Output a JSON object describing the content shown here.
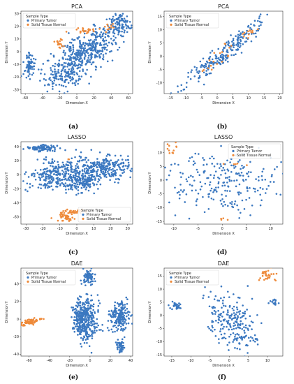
{
  "colors": {
    "primary": "#3b78c0",
    "normal": "#ee8a3a",
    "axis": "#333333"
  },
  "chart_data": [
    {
      "type": "scatter",
      "title": "PCA",
      "xlabel": "Dimension X",
      "ylabel": "Dimension Y",
      "xlim": [
        -65,
        65
      ],
      "ylim": [
        -33,
        32
      ],
      "xticks": [
        -60,
        -40,
        -20,
        0,
        20,
        40,
        60
      ],
      "yticks": [
        -30,
        -20,
        -10,
        0,
        10,
        20,
        30
      ],
      "legend": {
        "title": "Sample Type",
        "entries": [
          "Primary Tumor",
          "Solid Tissue Normal"
        ],
        "placement": "top-left"
      },
      "caption": "(a)",
      "series": [
        {
          "name": "Primary Tumor",
          "n": 700,
          "clusters": [
            {
              "cx": 10,
              "cy": 0,
              "sx": 22,
              "sy": 7,
              "w": 6,
              "angle": 0.4
            },
            {
              "cx": -55,
              "cy": -10,
              "sx": 3,
              "sy": 5,
              "w": 1
            },
            {
              "cx": 50,
              "cy": 22,
              "sx": 7,
              "sy": 4,
              "w": 1.2
            },
            {
              "cx": -15,
              "cy": -20,
              "sx": 12,
              "sy": 5,
              "w": 1.2
            }
          ]
        },
        {
          "name": "Solid Tissue Normal",
          "n": 55,
          "clusters": [
            {
              "cx": -20,
              "cy": 7,
              "sx": 3,
              "sy": 2,
              "w": 1
            },
            {
              "cx": 12,
              "cy": 17,
              "sx": 7,
              "sy": 1.5,
              "w": 1.5
            },
            {
              "cx": 38,
              "cy": 20,
              "sx": 3,
              "sy": 1.5,
              "w": 0.5
            }
          ]
        }
      ]
    },
    {
      "type": "scatter",
      "title": "PCA",
      "xlabel": "Dimension X",
      "ylabel": "Dimension Y",
      "xlim": [
        -17,
        21
      ],
      "ylim": [
        -14,
        17
      ],
      "xticks": [
        -15,
        -10,
        -5,
        0,
        5,
        10,
        15,
        20
      ],
      "yticks": [
        -10,
        -5,
        0,
        5,
        10,
        15
      ],
      "legend": {
        "title": "Sample Type",
        "entries": [
          "Primary Tumor",
          "Solid Tissue Normal"
        ],
        "placement": "top-left"
      },
      "caption": "(b)",
      "series": [
        {
          "name": "Primary Tumor",
          "n": 230,
          "clusters": [
            {
              "cx": 2,
              "cy": 1,
              "sx": 10,
              "sy": 1.5,
              "w": 1,
              "angle": 0.78
            }
          ]
        },
        {
          "name": "Solid Tissue Normal",
          "n": 30,
          "clusters": [
            {
              "cx": 2,
              "cy": 1,
              "sx": 5,
              "sy": 1,
              "w": 1,
              "angle": 0.78
            },
            {
              "cx": 10,
              "cy": 9,
              "sx": 1.5,
              "sy": 1,
              "w": 0.4
            }
          ]
        }
      ]
    },
    {
      "type": "scatter",
      "title": "LASSO",
      "xlabel": "Dimension X",
      "ylabel": "Dimension Y",
      "xlim": [
        -33,
        33
      ],
      "ylim": [
        -70,
        47
      ],
      "xticks": [
        -30,
        -20,
        -10,
        0,
        10,
        20,
        30
      ],
      "yticks": [
        -60,
        -40,
        -20,
        0,
        20,
        40
      ],
      "legend": {
        "title": "Sample Type",
        "entries": [
          "Primary Tumor",
          "Solid Tissue Normal"
        ],
        "placement": "bottom-right"
      },
      "caption": "(c)",
      "series": [
        {
          "name": "Primary Tumor",
          "n": 800,
          "clusters": [
            {
              "cx": -20,
              "cy": 38,
              "sx": 5,
              "sy": 2.5,
              "w": 1
            },
            {
              "cx": -12,
              "cy": 0,
              "sx": 9,
              "sy": 10,
              "w": 3
            },
            {
              "cx": 14,
              "cy": 10,
              "sx": 10,
              "sy": 9,
              "w": 3
            },
            {
              "cx": 4,
              "cy": -12,
              "sx": 4,
              "sy": 6,
              "w": 1
            }
          ]
        },
        {
          "name": "Solid Tissue Normal",
          "n": 70,
          "clusters": [
            {
              "cx": -7,
              "cy": -60,
              "sx": 2.5,
              "sy": 3.5,
              "w": 1
            },
            {
              "cx": 0,
              "cy": -52,
              "sx": 3,
              "sy": 1.5,
              "w": 0.6
            },
            {
              "cx": -5,
              "cy": 22,
              "sx": 0.3,
              "sy": 0.5,
              "w": 0.05
            }
          ]
        }
      ]
    },
    {
      "type": "scatter",
      "title": "LASSO",
      "xlabel": "Dimension X",
      "ylabel": "Dimension Y",
      "xlim": [
        -12,
        12.5
      ],
      "ylim": [
        -16,
        14
      ],
      "xticks": [
        -10,
        -5,
        0,
        5,
        10
      ],
      "yticks": [
        -15,
        -10,
        -5,
        0,
        5,
        10
      ],
      "legend": {
        "title": "Sample Type",
        "entries": [
          "Primary Tumor",
          "Solid Tissue Normal"
        ],
        "placement": "top-right"
      },
      "caption": "(d)",
      "series": [
        {
          "name": "Primary Tumor",
          "n": 240,
          "clusters": [
            {
              "cx": 0,
              "cy": 0,
              "sx": 6,
              "sy": 6,
              "w": 1
            }
          ]
        },
        {
          "name": "Solid Tissue Normal",
          "n": 22,
          "clusters": [
            {
              "cx": -10.5,
              "cy": 11,
              "sx": 0.8,
              "sy": 1.5,
              "w": 1
            },
            {
              "cx": 3.5,
              "cy": 6,
              "sx": 1,
              "sy": 0.3,
              "w": 0.4
            },
            {
              "cx": 0,
              "cy": -14,
              "sx": 0.4,
              "sy": 0.3,
              "w": 0.3
            }
          ]
        }
      ]
    },
    {
      "type": "scatter",
      "title": "DAE",
      "xlabel": "Dimension X",
      "ylabel": "Dimension Y",
      "xlim": [
        -68,
        42
      ],
      "ylim": [
        -42,
        58
      ],
      "xticks": [
        -60,
        -40,
        -20,
        0,
        20,
        40
      ],
      "yticks": [
        -40,
        -20,
        0,
        20,
        40
      ],
      "legend": {
        "title": "Sample Type",
        "entries": [
          "Primary Tumor",
          "Solid Tissue Normal"
        ],
        "placement": "top-left"
      },
      "caption": "(e)",
      "series": [
        {
          "name": "Primary Tumor",
          "n": 700,
          "clusters": [
            {
              "cx": -2,
              "cy": 48,
              "sx": 2.5,
              "sy": 4,
              "w": 0.6
            },
            {
              "cx": -5,
              "cy": 0,
              "sx": 6,
              "sy": 12,
              "w": 3
            },
            {
              "cx": 30,
              "cy": 3,
              "sx": 5,
              "sy": 9,
              "w": 1.5
            },
            {
              "cx": 30,
              "cy": -30,
              "sx": 2,
              "sy": 4,
              "w": 0.4
            }
          ]
        },
        {
          "name": "Solid Tissue Normal",
          "n": 70,
          "clusters": [
            {
              "cx": -58,
              "cy": -3,
              "sx": 6,
              "sy": 1.5,
              "w": 1,
              "angle": 0.25
            }
          ]
        }
      ]
    },
    {
      "type": "scatter",
      "title": "DAE",
      "xlabel": "Dimension X",
      "ylabel": "Dimension Y",
      "xlim": [
        -17,
        14
      ],
      "ylim": [
        -15.5,
        18
      ],
      "xticks": [
        -15,
        -10,
        -5,
        0,
        5,
        10
      ],
      "yticks": [
        -15,
        -10,
        -5,
        0,
        5,
        10,
        15
      ],
      "legend": {
        "title": "Sample Type",
        "entries": [
          "Primary Tumor",
          "Solid Tissue Normal"
        ],
        "placement": "top-left"
      },
      "caption": "(f)",
      "series": [
        {
          "name": "Primary Tumor",
          "n": 280,
          "clusters": [
            {
              "cx": -14,
              "cy": 3.5,
              "sx": 1,
              "sy": 0.8,
              "w": 0.3
            },
            {
              "cx": 1,
              "cy": -3,
              "sx": 3,
              "sy": 5.5,
              "w": 2,
              "angle": 0.3
            },
            {
              "cx": 12,
              "cy": 5,
              "sx": 0.8,
              "sy": 0.6,
              "w": 0.15
            }
          ]
        },
        {
          "name": "Solid Tissue Normal",
          "n": 30,
          "clusters": [
            {
              "cx": 10,
              "cy": 15.5,
              "sx": 1,
              "sy": 1.2,
              "w": 1
            }
          ]
        }
      ]
    }
  ]
}
